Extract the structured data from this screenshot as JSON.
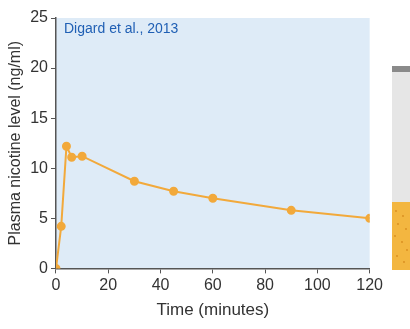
{
  "chart_data": {
    "type": "line",
    "annotation": "Digard et al., 2013",
    "x_label": "Time (minutes)",
    "y_label": "Plasma nicotine level (ng/ml)",
    "x": [
      0,
      2,
      4,
      6,
      10,
      30,
      45,
      60,
      90,
      120
    ],
    "values": [
      0,
      4.2,
      12.2,
      11.1,
      11.2,
      8.7,
      7.7,
      7.0,
      5.8,
      5.0
    ],
    "color": "#f2a93b",
    "marker": "circle",
    "line_style": "solid",
    "xlim": [
      0,
      120
    ],
    "xticks": [
      0,
      20,
      40,
      60,
      80,
      100,
      120
    ],
    "ylim": [
      0,
      25
    ],
    "yticks": [
      0,
      5,
      10,
      15,
      20,
      25
    ],
    "grid": false
  }
}
